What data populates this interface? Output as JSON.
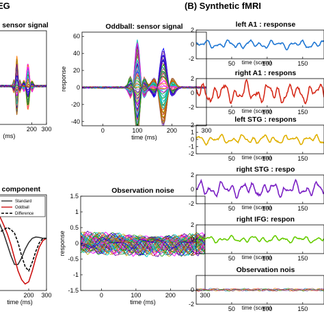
{
  "panel_labels": {
    "a": "EG",
    "b": "(B) Synthetic fMRI"
  },
  "chart_data": [
    {
      "id": "std-sensor",
      "type": "line",
      "title": "sensor signal",
      "xlabel": "(ms)",
      "ylabel": "",
      "xlim": [
        -60,
        300
      ],
      "ylim": [
        -45,
        65
      ],
      "xticks": [
        {
          "v": 200,
          "t": "200"
        },
        {
          "v": 300,
          "t": "300"
        }
      ],
      "yticks": [],
      "n_series": 60,
      "peak": 35
    },
    {
      "id": "odd-sensor",
      "type": "line",
      "title": "Oddball: sensor signal",
      "xlabel": "time (ms)",
      "ylabel": "response",
      "xlim": [
        -60,
        300
      ],
      "ylim": [
        -45,
        65
      ],
      "xticks": [
        {
          "v": 0,
          "t": "0"
        },
        {
          "v": 100,
          "t": "100"
        },
        {
          "v": 200,
          "t": "200"
        },
        {
          "v": 300,
          "t": "300"
        }
      ],
      "yticks": [
        {
          "v": 60,
          "t": "60"
        },
        {
          "v": 40,
          "t": "40"
        },
        {
          "v": 20,
          "t": "20"
        },
        {
          "v": 0,
          "t": "0"
        },
        {
          "v": -20,
          "t": "-20"
        },
        {
          "v": -40,
          "t": "-40"
        }
      ],
      "n_series": 60,
      "peak": 58
    },
    {
      "id": "comp",
      "type": "line",
      "title": "al component",
      "xlabel": "time (ms)",
      "ylabel": "",
      "xlim": [
        0,
        300
      ],
      "ylim": [
        -1.2,
        1.0
      ],
      "xticks": [
        {
          "v": 200,
          "t": "200"
        },
        {
          "v": 300,
          "t": "300"
        }
      ],
      "yticks": [],
      "legend": [
        "Standard",
        "Oddball",
        "Difference"
      ],
      "series": [
        {
          "name": "Standard",
          "color": "#333333",
          "dash": "",
          "x": [
            0,
            20,
            40,
            60,
            80,
            100,
            120,
            140,
            160,
            180,
            200,
            220,
            240,
            260,
            280,
            300
          ],
          "y": [
            0.6,
            0.5,
            0.3,
            0.1,
            -0.15,
            -0.4,
            -0.6,
            -0.6,
            -0.45,
            -0.25,
            -0.1,
            0.0,
            0.03,
            0.02,
            0.0,
            0.0
          ]
        },
        {
          "name": "Oddball",
          "color": "#cc1111",
          "dash": "",
          "x": [
            0,
            20,
            40,
            60,
            80,
            100,
            120,
            140,
            160,
            180,
            200,
            220,
            240,
            260,
            280,
            300
          ],
          "y": [
            0.7,
            0.62,
            0.48,
            0.3,
            0.1,
            -0.15,
            -0.45,
            -0.75,
            -0.95,
            -1.05,
            -1.0,
            -0.75,
            -0.45,
            -0.2,
            -0.05,
            0.0
          ]
        },
        {
          "name": "Difference",
          "color": "#000000",
          "dash": "4,2",
          "x": [
            0,
            20,
            40,
            60,
            80,
            100,
            120,
            140,
            160,
            180,
            200,
            220,
            240,
            260,
            280,
            300
          ],
          "y": [
            0.1,
            0.12,
            0.15,
            0.2,
            0.25,
            0.2,
            0.12,
            -0.1,
            -0.4,
            -0.65,
            -0.75,
            -0.55,
            -0.3,
            -0.1,
            0.0,
            0.0
          ]
        }
      ]
    },
    {
      "id": "obs-noise",
      "type": "line",
      "title": "Observation noise",
      "xlabel": "time (ms)",
      "ylabel": "response",
      "xlim": [
        -60,
        300
      ],
      "ylim": [
        -1.5,
        1.5
      ],
      "xticks": [
        {
          "v": 0,
          "t": "0"
        },
        {
          "v": 100,
          "t": "100"
        },
        {
          "v": 200,
          "t": "200"
        },
        {
          "v": 300,
          "t": "300"
        }
      ],
      "yticks": [
        {
          "v": 1.5,
          "t": "1.5"
        },
        {
          "v": 1,
          "t": "1"
        },
        {
          "v": 0.5,
          "t": "0.5"
        },
        {
          "v": 0,
          "t": "0"
        },
        {
          "v": -0.5,
          "t": "-0.5"
        },
        {
          "v": -1,
          "t": "-1"
        },
        {
          "v": -1.5,
          "t": "-1.5"
        }
      ],
      "n_series": 60,
      "amp": 0.35
    },
    {
      "id": "f1",
      "type": "line",
      "title": "left A1 : response",
      "xlabel": "time (scans)",
      "xlim": [
        0,
        180
      ],
      "ylim": [
        -2,
        2
      ],
      "color": "#1f77d4",
      "amp": 0.5,
      "seed": 3,
      "xticks": [
        {
          "v": 50,
          "t": "50"
        },
        {
          "v": 100,
          "t": "100"
        },
        {
          "v": 150,
          "t": "150"
        }
      ],
      "yticks": [
        {
          "v": 2,
          "t": "2"
        },
        {
          "v": 0,
          "t": "0"
        },
        {
          "v": -2,
          "t": "-2"
        }
      ]
    },
    {
      "id": "f2",
      "type": "line",
      "title": "right A1 : respons",
      "xlabel": "time (scans)",
      "xlim": [
        0,
        180
      ],
      "ylim": [
        -2,
        2
      ],
      "color": "#d62a1a",
      "amp": 1.2,
      "seed": 7,
      "xticks": [
        {
          "v": 50,
          "t": "50"
        },
        {
          "v": 100,
          "t": "100"
        },
        {
          "v": 150,
          "t": "150"
        }
      ],
      "yticks": [
        {
          "v": 2,
          "t": "2"
        },
        {
          "v": 0,
          "t": "0"
        },
        {
          "v": -2,
          "t": "-2"
        }
      ]
    },
    {
      "id": "f3",
      "type": "line",
      "title": "left STG : respons",
      "xlabel": "time (scans)",
      "xlim": [
        0,
        180
      ],
      "ylim": [
        -2,
        2
      ],
      "color": "#e0b000",
      "amp": 0.55,
      "seed": 11,
      "xticks": [
        {
          "v": 50,
          "t": "50"
        },
        {
          "v": 100,
          "t": "100"
        },
        {
          "v": 150,
          "t": "150"
        }
      ],
      "yticks": [
        {
          "v": 2,
          "t": "2"
        },
        {
          "v": 1,
          "t": "1"
        },
        {
          "v": 0,
          "t": "0"
        },
        {
          "v": -1,
          "t": "-1"
        },
        {
          "v": -2,
          "t": "-2"
        }
      ]
    },
    {
      "id": "f4",
      "type": "line",
      "title": "right STG : respo",
      "xlabel": "time (scans)",
      "xlim": [
        0,
        180
      ],
      "ylim": [
        -2,
        2
      ],
      "color": "#7a1fc4",
      "amp": 0.9,
      "seed": 17,
      "xticks": [
        {
          "v": 50,
          "t": "50"
        },
        {
          "v": 100,
          "t": "100"
        },
        {
          "v": 150,
          "t": "150"
        }
      ],
      "yticks": [
        {
          "v": 2,
          "t": "2"
        },
        {
          "v": 0,
          "t": "0"
        },
        {
          "v": -2,
          "t": "-2"
        }
      ]
    },
    {
      "id": "f5",
      "type": "line",
      "title": "right IFG: respon",
      "xlabel": "time (scans)",
      "xlim": [
        0,
        180
      ],
      "ylim": [
        -2,
        2
      ],
      "color": "#66cc00",
      "amp": 0.4,
      "seed": 23,
      "xticks": [
        {
          "v": 50,
          "t": "50"
        },
        {
          "v": 100,
          "t": "100"
        },
        {
          "v": 150,
          "t": "150"
        }
      ],
      "yticks": [
        {
          "v": 2,
          "t": "2"
        },
        {
          "v": 0,
          "t": "0"
        },
        {
          "v": -2,
          "t": "-2"
        }
      ]
    },
    {
      "id": "f6",
      "type": "line",
      "title": "Observation nois",
      "xlabel": "time (scans)",
      "xlim": [
        0,
        180
      ],
      "ylim": [
        -2,
        2
      ],
      "color": "#444444",
      "amp": 0.15,
      "seed": 29,
      "multi": true,
      "xticks": [
        {
          "v": 50,
          "t": "50"
        },
        {
          "v": 100,
          "t": "100"
        },
        {
          "v": 150,
          "t": "150"
        }
      ],
      "yticks": [
        {
          "v": 0,
          "t": "0"
        },
        {
          "v": -2,
          "t": "-2"
        }
      ]
    }
  ]
}
